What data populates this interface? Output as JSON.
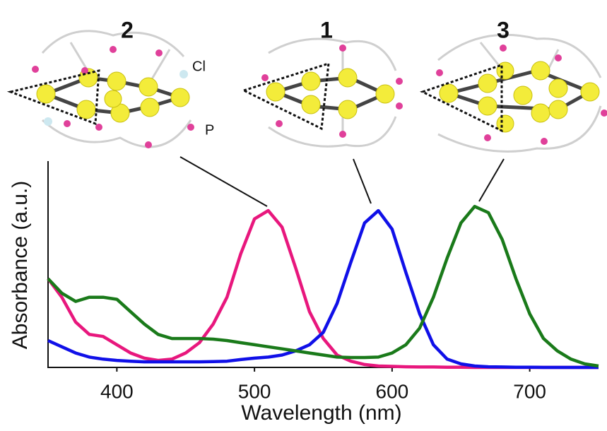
{
  "chart_data": {
    "type": "line",
    "xlabel": "Wavelength (nm)",
    "ylabel": "Absorbance (a.u.)",
    "annotations": [
      "2",
      "1",
      "3",
      "Cl",
      "P"
    ],
    "x": [
      350,
      360,
      370,
      380,
      390,
      400,
      410,
      420,
      430,
      440,
      450,
      460,
      470,
      480,
      490,
      500,
      510,
      520,
      530,
      540,
      550,
      560,
      570,
      580,
      590,
      600,
      610,
      620,
      630,
      640,
      650,
      660,
      670,
      680,
      690,
      700,
      710,
      720,
      730,
      740,
      750
    ],
    "series": [
      {
        "color": "#e8177d",
        "values": [
          0.43,
          0.34,
          0.22,
          0.16,
          0.15,
          0.11,
          0.07,
          0.045,
          0.034,
          0.04,
          0.07,
          0.12,
          0.21,
          0.34,
          0.55,
          0.72,
          0.76,
          0.68,
          0.48,
          0.27,
          0.14,
          0.06,
          0.03,
          0.014,
          0.007,
          0.005,
          0.003,
          0.002,
          0.002,
          0.001,
          0.001,
          0,
          0,
          0,
          0,
          0,
          0,
          0,
          0,
          0,
          0
        ]
      },
      {
        "color": "#1010e8",
        "values": [
          0.13,
          0.1,
          0.07,
          0.05,
          0.04,
          0.034,
          0.03,
          0.027,
          0.027,
          0.027,
          0.027,
          0.027,
          0.028,
          0.03,
          0.038,
          0.045,
          0.05,
          0.06,
          0.08,
          0.11,
          0.17,
          0.31,
          0.51,
          0.7,
          0.76,
          0.67,
          0.46,
          0.26,
          0.11,
          0.04,
          0.017,
          0.007,
          0.003,
          0.002,
          0.001,
          0.001,
          0,
          0,
          0,
          0,
          0
        ]
      },
      {
        "color": "#1a7a1a",
        "values": [
          0.43,
          0.36,
          0.32,
          0.34,
          0.34,
          0.33,
          0.27,
          0.21,
          0.16,
          0.14,
          0.14,
          0.14,
          0.137,
          0.13,
          0.12,
          0.11,
          0.1,
          0.09,
          0.08,
          0.07,
          0.06,
          0.05,
          0.048,
          0.048,
          0.05,
          0.07,
          0.11,
          0.19,
          0.34,
          0.53,
          0.7,
          0.78,
          0.75,
          0.62,
          0.43,
          0.26,
          0.14,
          0.08,
          0.04,
          0.017,
          0.007
        ]
      }
    ],
    "xlim": [
      350,
      750
    ],
    "xticks": [
      400,
      500,
      600,
      700
    ],
    "ylim": [
      0,
      1
    ]
  }
}
